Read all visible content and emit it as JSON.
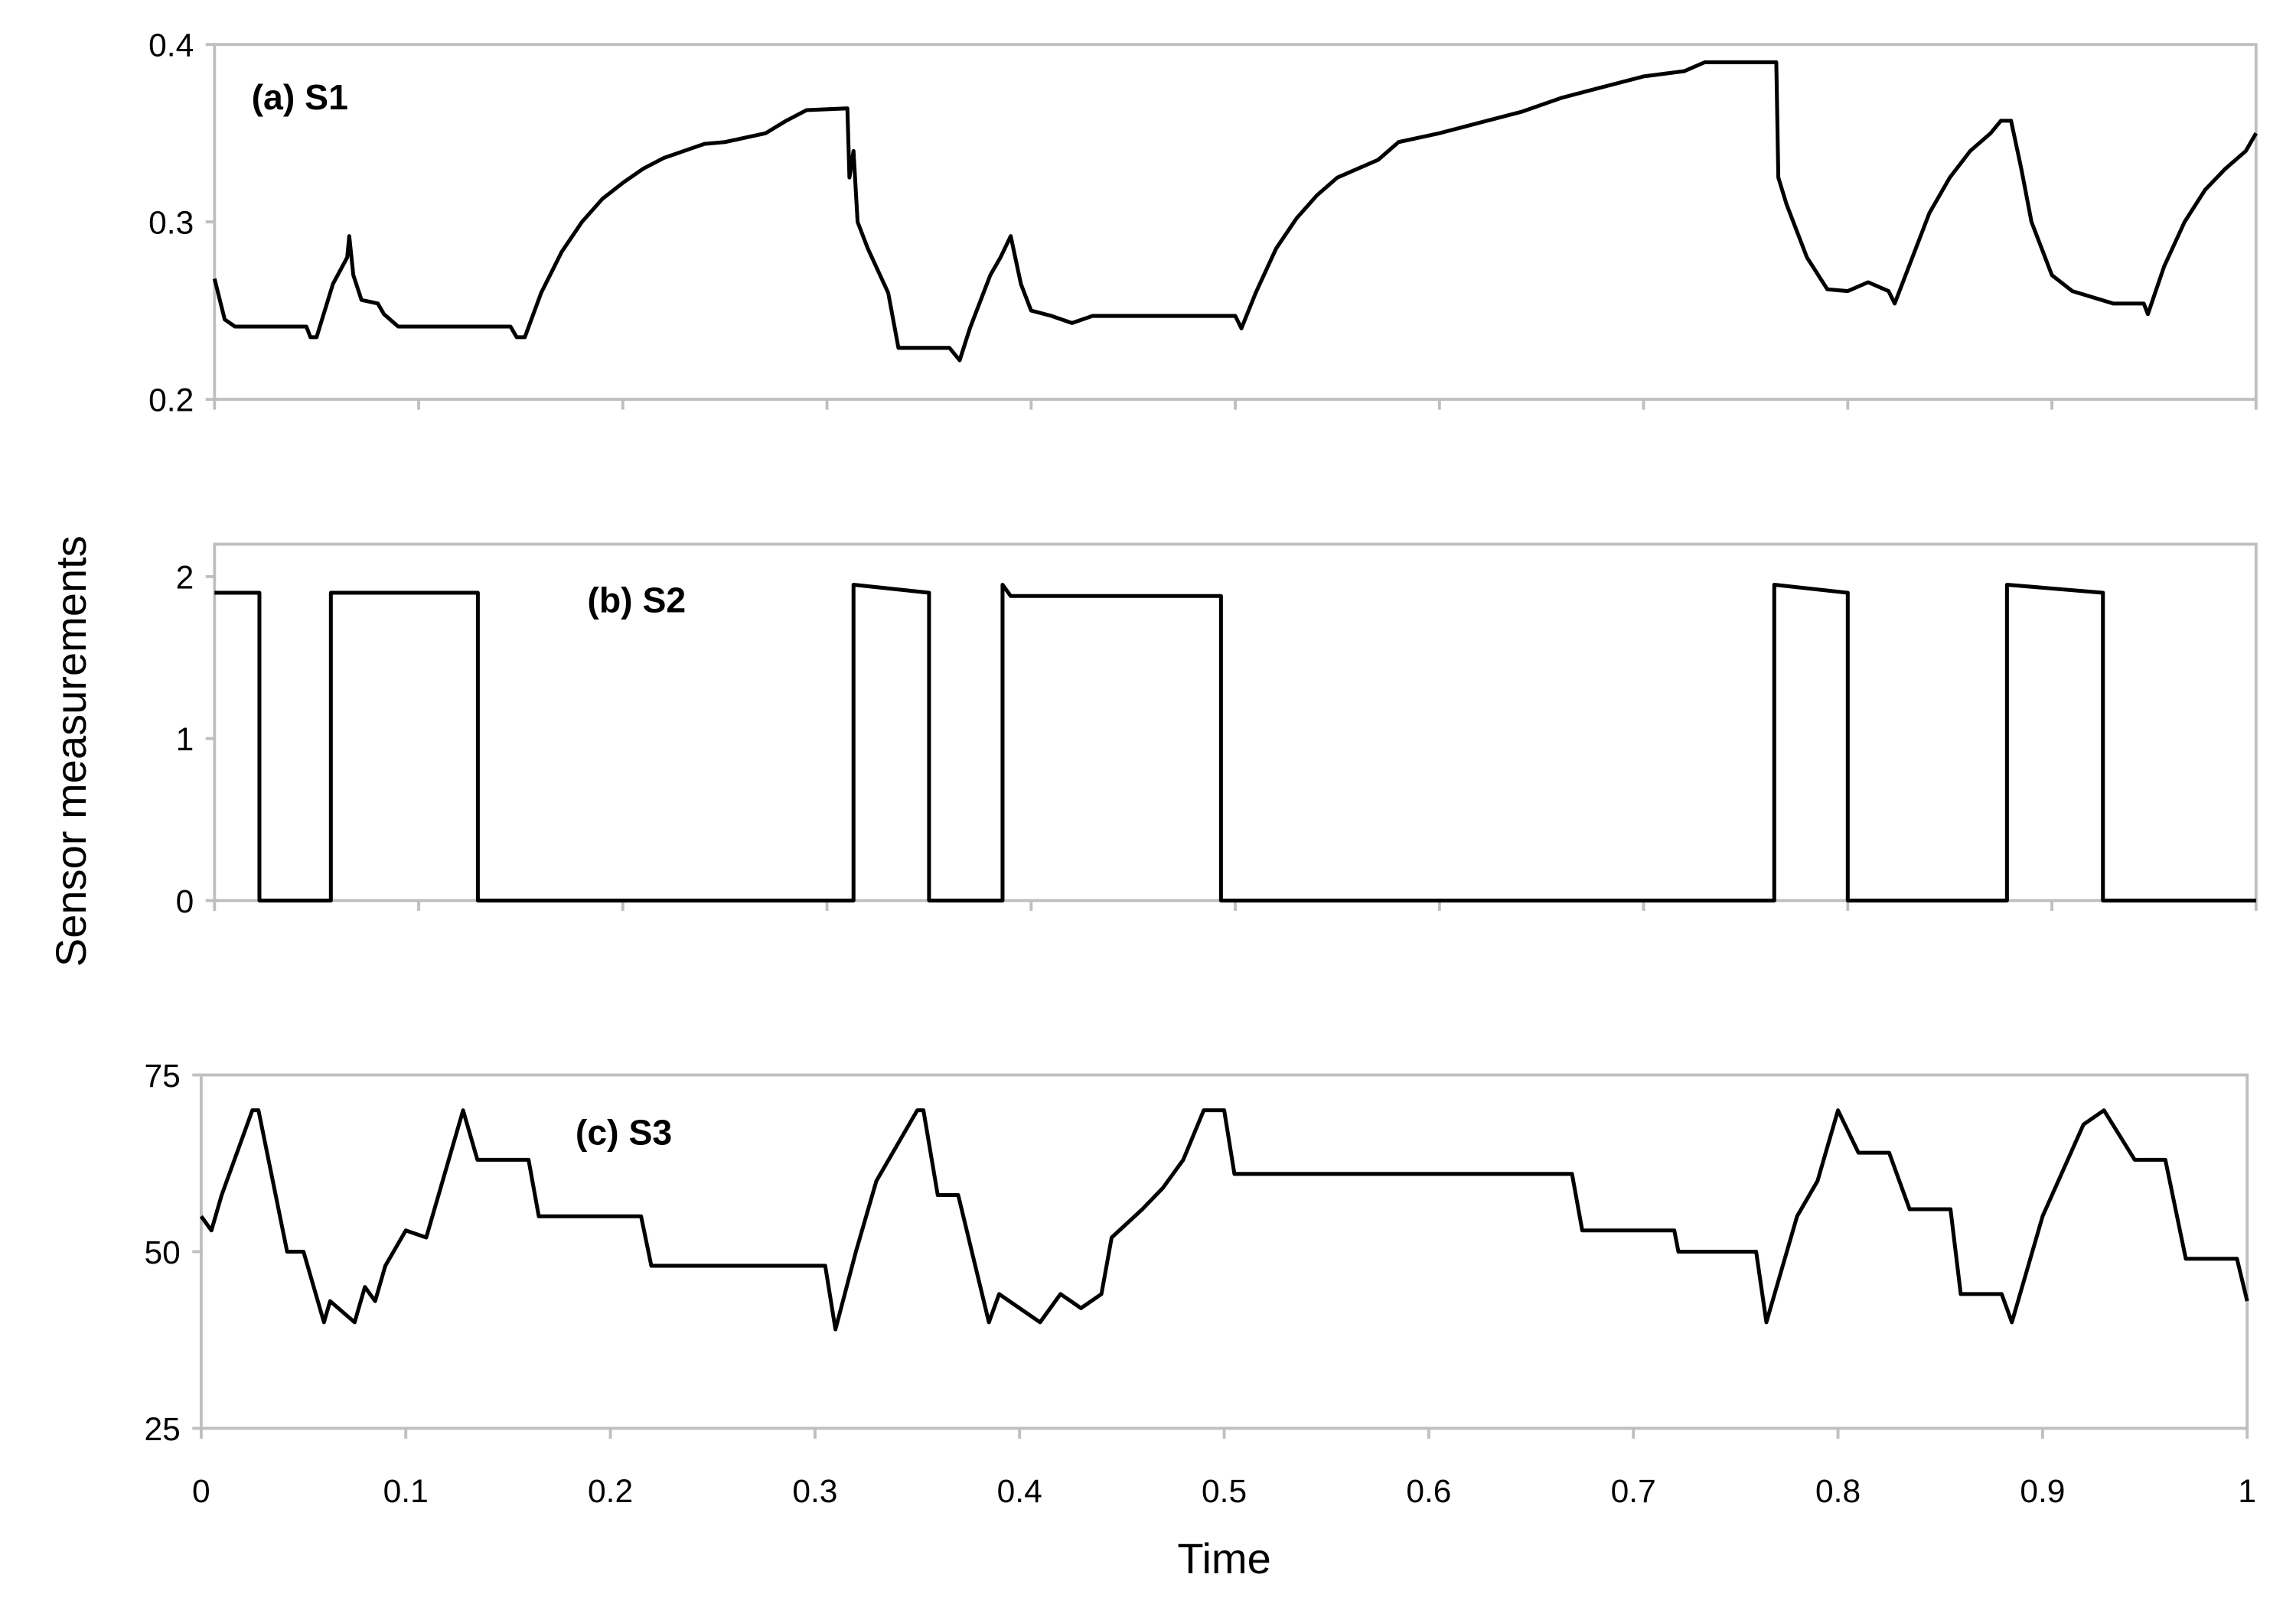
{
  "chart_data": [
    {
      "type": "line",
      "title": "(a) S1",
      "color": "#000000",
      "x": [
        0,
        0.005,
        0.01,
        0.045,
        0.047,
        0.05,
        0.058,
        0.065,
        0.066,
        0.068,
        0.072,
        0.08,
        0.083,
        0.09,
        0.145,
        0.148,
        0.152,
        0.16,
        0.17,
        0.18,
        0.19,
        0.2,
        0.21,
        0.22,
        0.24,
        0.25,
        0.27,
        0.28,
        0.29,
        0.31,
        0.311,
        0.313,
        0.315,
        0.32,
        0.33,
        0.335,
        0.36,
        0.365,
        0.37,
        0.38,
        0.385,
        0.39,
        0.395,
        0.4,
        0.41,
        0.42,
        0.43,
        0.5,
        0.503,
        0.51,
        0.52,
        0.53,
        0.54,
        0.55,
        0.57,
        0.58,
        0.6,
        0.62,
        0.64,
        0.66,
        0.68,
        0.7,
        0.72,
        0.73,
        0.765,
        0.766,
        0.77,
        0.78,
        0.79,
        0.8,
        0.81,
        0.82,
        0.823,
        0.83,
        0.84,
        0.85,
        0.86,
        0.87,
        0.875,
        0.88,
        0.885,
        0.89,
        0.9,
        0.91,
        0.93,
        0.945,
        0.947,
        0.955,
        0.965,
        0.975,
        0.985,
        0.995,
        1
      ],
      "values": [
        0.268,
        0.245,
        0.241,
        0.241,
        0.235,
        0.235,
        0.265,
        0.28,
        0.292,
        0.27,
        0.256,
        0.254,
        0.248,
        0.241,
        0.241,
        0.235,
        0.235,
        0.26,
        0.283,
        0.3,
        0.313,
        0.322,
        0.33,
        0.336,
        0.344,
        0.345,
        0.35,
        0.357,
        0.363,
        0.364,
        0.325,
        0.34,
        0.3,
        0.285,
        0.26,
        0.229,
        0.229,
        0.222,
        0.24,
        0.27,
        0.28,
        0.292,
        0.265,
        0.25,
        0.247,
        0.243,
        0.247,
        0.247,
        0.24,
        0.26,
        0.285,
        0.302,
        0.315,
        0.325,
        0.335,
        0.345,
        0.35,
        0.356,
        0.362,
        0.37,
        0.376,
        0.382,
        0.385,
        0.39,
        0.39,
        0.325,
        0.31,
        0.28,
        0.262,
        0.261,
        0.266,
        0.261,
        0.254,
        0.275,
        0.305,
        0.325,
        0.34,
        0.35,
        0.357,
        0.357,
        0.33,
        0.3,
        0.27,
        0.261,
        0.254,
        0.254,
        0.248,
        0.275,
        0.3,
        0.318,
        0.33,
        0.34,
        0.35
      ],
      "xlim": [
        0,
        1
      ],
      "xticks": [
        0,
        0.1,
        0.2,
        0.3,
        0.4,
        0.5,
        0.6,
        0.7,
        0.8,
        0.9,
        1
      ],
      "xtick_labels": false,
      "ylim": [
        0.2,
        0.4
      ],
      "yticks": [
        0.2,
        0.3,
        0.4
      ]
    },
    {
      "type": "line",
      "title": "(b) S2",
      "ylabel": "Sensor measurements",
      "color": "#000000",
      "x": [
        0,
        0.022,
        0.022,
        0.057,
        0.057,
        0.129,
        0.129,
        0.313,
        0.313,
        0.35,
        0.35,
        0.386,
        0.386,
        0.39,
        0.493,
        0.493,
        0.764,
        0.764,
        0.8,
        0.8,
        0.878,
        0.878,
        0.925,
        0.925,
        1
      ],
      "values": [
        1.9,
        1.9,
        0,
        0,
        1.9,
        1.9,
        0,
        0,
        1.95,
        1.9,
        0,
        0,
        1.95,
        1.88,
        1.88,
        0,
        0,
        1.95,
        1.9,
        0,
        0,
        1.95,
        1.9,
        0,
        0
      ],
      "xlim": [
        0,
        1
      ],
      "xticks": [
        0,
        0.1,
        0.2,
        0.3,
        0.4,
        0.5,
        0.6,
        0.7,
        0.8,
        0.9,
        1
      ],
      "xtick_labels": false,
      "ylim": [
        0,
        2.2
      ],
      "yticks": [
        0,
        1,
        2
      ]
    },
    {
      "type": "line",
      "title": "(c) S3",
      "xlabel": "Time",
      "color": "#000000",
      "x": [
        0,
        0.005,
        0.01,
        0.025,
        0.028,
        0.042,
        0.05,
        0.06,
        0.063,
        0.075,
        0.08,
        0.085,
        0.09,
        0.1,
        0.11,
        0.128,
        0.135,
        0.16,
        0.165,
        0.19,
        0.215,
        0.22,
        0.305,
        0.31,
        0.32,
        0.33,
        0.35,
        0.353,
        0.36,
        0.37,
        0.385,
        0.39,
        0.4,
        0.41,
        0.42,
        0.43,
        0.44,
        0.445,
        0.46,
        0.47,
        0.48,
        0.49,
        0.5,
        0.505,
        0.67,
        0.675,
        0.72,
        0.722,
        0.76,
        0.765,
        0.78,
        0.79,
        0.8,
        0.81,
        0.825,
        0.835,
        0.855,
        0.86,
        0.88,
        0.885,
        0.9,
        0.92,
        0.93,
        0.945,
        0.96,
        0.97,
        0.995,
        1
      ],
      "values": [
        55,
        53,
        58,
        70,
        70,
        50,
        50,
        40,
        43,
        40,
        45,
        43,
        48,
        53,
        52,
        70,
        63,
        63,
        55,
        55,
        55,
        48,
        48,
        39,
        50,
        60,
        70,
        70,
        58,
        58,
        40,
        44,
        42,
        40,
        44,
        42,
        44,
        52,
        56,
        59,
        63,
        70,
        70,
        61,
        61,
        53,
        53,
        50,
        50,
        40,
        55,
        60,
        70,
        64,
        64,
        56,
        56,
        44,
        44,
        40,
        55,
        68,
        70,
        63,
        63,
        49,
        49,
        43
      ],
      "xlim": [
        0,
        1
      ],
      "xticks": [
        0,
        0.1,
        0.2,
        0.3,
        0.4,
        0.5,
        0.6,
        0.7,
        0.8,
        0.9,
        1
      ],
      "xtick_labels": true,
      "ylim": [
        25,
        75
      ],
      "yticks": [
        25,
        50,
        75
      ]
    }
  ]
}
